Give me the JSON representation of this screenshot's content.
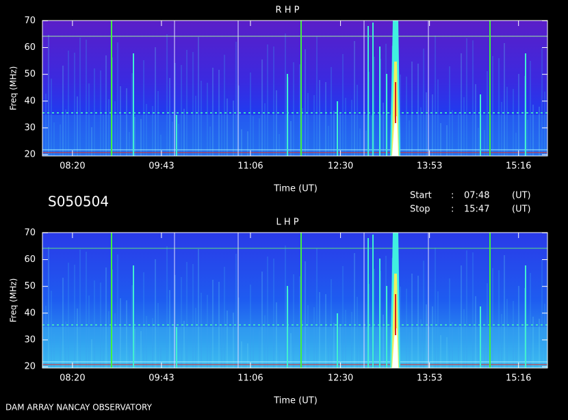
{
  "station_id": "S050504",
  "start_label": "Start",
  "stop_label": "Stop",
  "separator": ":",
  "start_time": "07:48",
  "stop_time": "15:47",
  "unit": "(UT)",
  "footer": "DAM ARRAY  NANCAY OBSERVATORY",
  "chart_data": [
    {
      "type": "spectrogram",
      "title": "R H P",
      "x_label": "Time (UT)",
      "y_label": "Freq (MHz)",
      "xlim": [
        472,
        943
      ],
      "ylim": [
        19.5,
        70.1
      ],
      "xticks": [
        {
          "value": 500,
          "label": "08:20"
        },
        {
          "value": 583,
          "label": "09:43"
        },
        {
          "value": 666,
          "label": "11:06"
        },
        {
          "value": 750,
          "label": "12:30"
        },
        {
          "value": 833,
          "label": "13:53"
        },
        {
          "value": 916,
          "label": "15:16"
        }
      ],
      "yticks": [
        20,
        30,
        40,
        50,
        60,
        70
      ]
    },
    {
      "type": "spectrogram",
      "title": "L H P",
      "x_label": "Time (UT)",
      "y_label": "Freq (MHz)",
      "xlim": [
        472,
        943
      ],
      "ylim": [
        19.5,
        70.1
      ],
      "xticks": [
        {
          "value": 500,
          "label": "08:20"
        },
        {
          "value": 583,
          "label": "09:43"
        },
        {
          "value": 666,
          "label": "11:06"
        },
        {
          "value": 750,
          "label": "12:30"
        },
        {
          "value": 833,
          "label": "13:53"
        },
        {
          "value": 916,
          "label": "15:16"
        }
      ],
      "yticks": [
        20,
        30,
        40,
        50,
        60,
        70
      ]
    }
  ]
}
